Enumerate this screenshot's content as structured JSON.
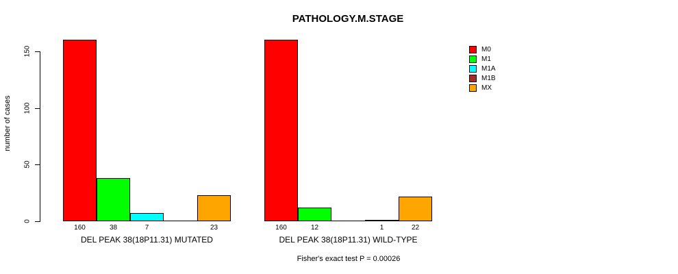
{
  "page": {
    "background": "#FFFFFF",
    "text_color": "#000000"
  },
  "chart_data": {
    "type": "bar",
    "title": "PATHOLOGY.M.STAGE",
    "ylabel": "number of cases",
    "xlabel": "",
    "ylim": [
      0,
      160
    ],
    "yticks": [
      0,
      50,
      100,
      150
    ],
    "grid": false,
    "legend_position": "right",
    "categories": [
      "M0",
      "M1",
      "M1A",
      "M1B",
      "MX"
    ],
    "colors": [
      "#FF0000",
      "#00FF00",
      "#00FFFF",
      "#A52A2A",
      "#FFA500"
    ],
    "groups": [
      {
        "label": "DEL PEAK 38(18P11.31) MUTATED",
        "values": [
          160,
          38,
          7,
          0,
          23
        ]
      },
      {
        "label": "DEL PEAK 38(18P11.31) WILD-TYPE",
        "values": [
          160,
          12,
          0,
          1,
          22
        ]
      }
    ],
    "annotation": "Fisher's exact test P = 0.00026"
  }
}
